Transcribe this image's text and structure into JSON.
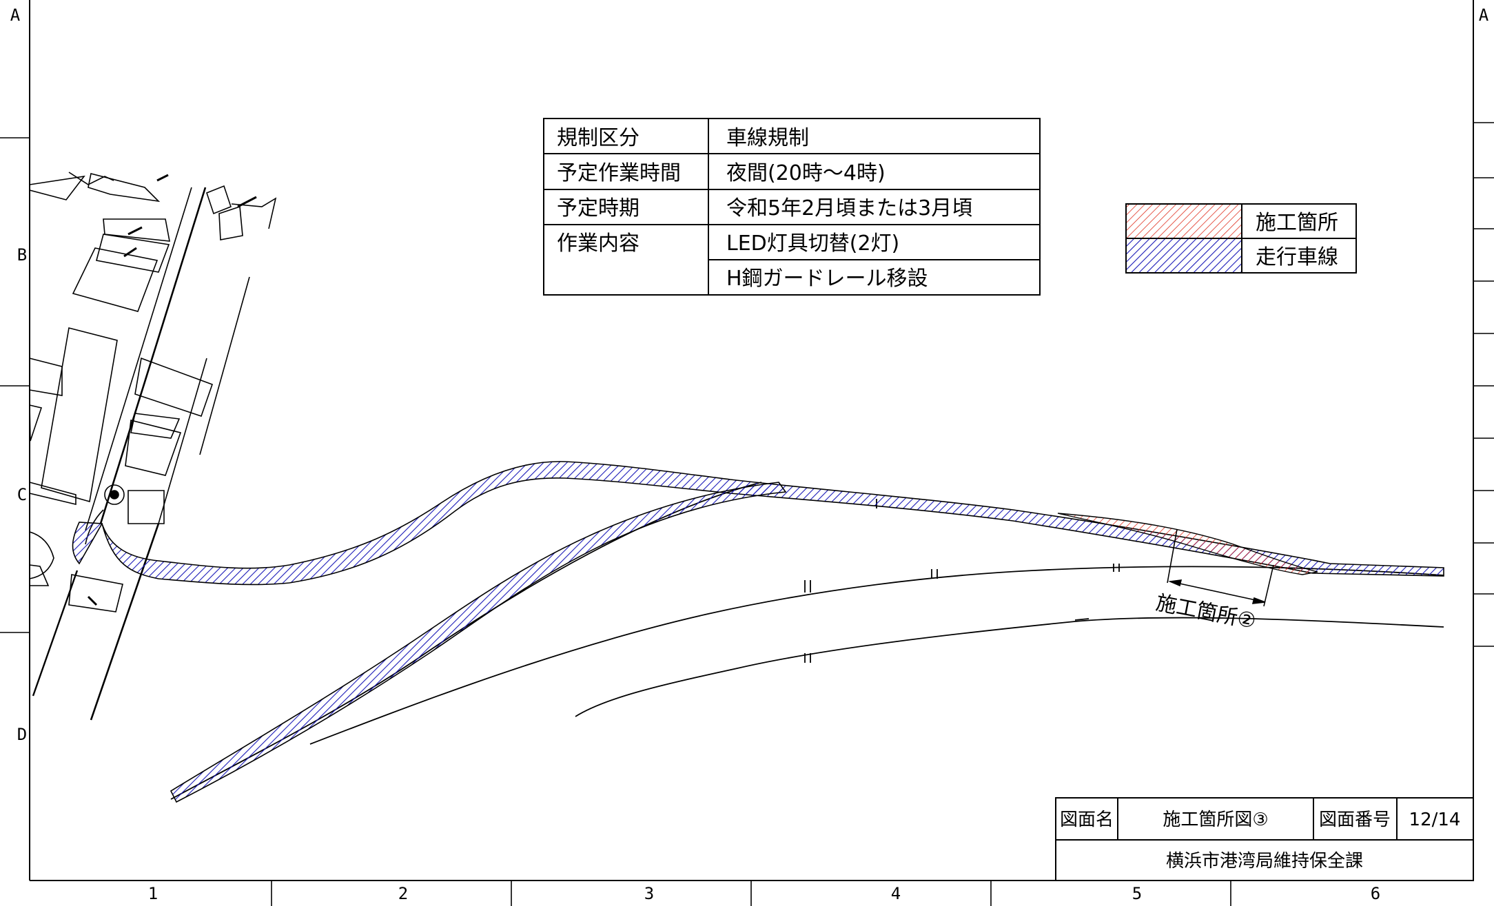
{
  "frame": {
    "row_labels": [
      "A",
      "B",
      "C",
      "D"
    ],
    "right_row_labels": [
      "A"
    ],
    "col_labels": [
      "1",
      "2",
      "3",
      "4",
      "5",
      "6"
    ]
  },
  "info_table": {
    "rows": [
      {
        "key": "規制区分",
        "value": "車線規制"
      },
      {
        "key": "予定作業時間",
        "value": "夜間(20時～4時)"
      },
      {
        "key": "予定時期",
        "value": "令和5年2月頃または3月頃"
      },
      {
        "key": "作業内容",
        "value": "LED灯具切替(2灯)"
      },
      {
        "key": "",
        "value": "H鋼ガードレール移設"
      }
    ]
  },
  "legend": {
    "items": [
      {
        "label": "施工箇所",
        "color": "#e03020"
      },
      {
        "label": "走行車線",
        "color": "#1a1ab8"
      }
    ]
  },
  "annotation": {
    "label": "施工箇所②"
  },
  "title_block": {
    "name_label": "図面名",
    "name_value": "施工箇所図③",
    "number_label": "図面番号",
    "number_value": "12/14",
    "department": "横浜市港湾局維持保全課"
  },
  "colors": {
    "line": "#000000",
    "hatch_red": "#e03020",
    "hatch_blue": "#1a1ab8"
  }
}
